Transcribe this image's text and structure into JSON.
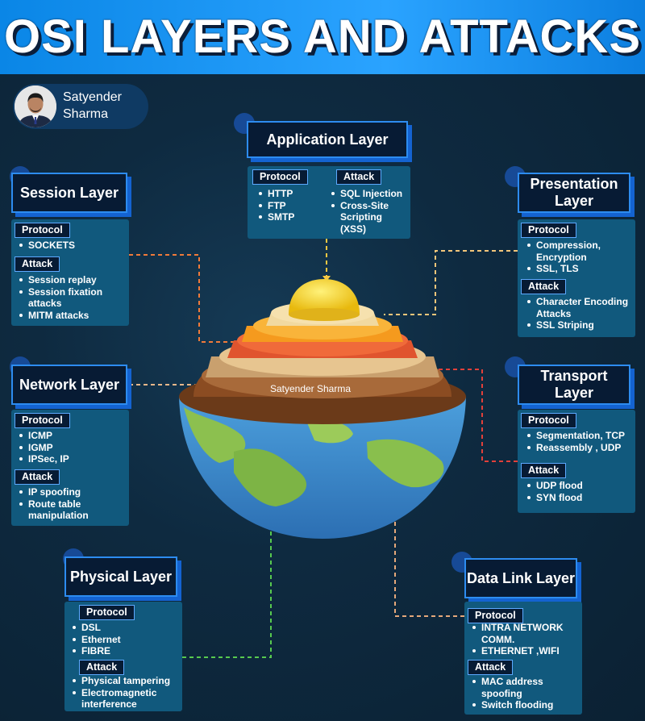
{
  "title": "OSI LAYERS AND ATTACKS",
  "author": {
    "name": "Satyender Sharma",
    "watermark": "Satyender Sharma"
  },
  "colors": {
    "banner": "#1a93f5",
    "background": "#0d2438",
    "panel": "#11597d",
    "title_box": "#071b34",
    "accent": "#1463d1"
  },
  "layers": {
    "application": {
      "title": "Application Layer",
      "protocol_label": "Protocol",
      "attack_label": "Attack",
      "protocols": [
        "HTTP",
        "FTP",
        "SMTP"
      ],
      "attacks": [
        "SQL Injection",
        "Cross-Site Scripting (XSS)"
      ]
    },
    "presentation": {
      "title": "Presentation Layer",
      "protocol_label": "Protocol",
      "attack_label": "Attack",
      "protocols": [
        "Compression, Encryption",
        "SSL, TLS"
      ],
      "attacks": [
        "Character Encoding Attacks",
        "SSL Striping"
      ]
    },
    "session": {
      "title": "Session Layer",
      "protocol_label": "Protocol",
      "attack_label": "Attack",
      "protocols": [
        "SOCKETS"
      ],
      "attacks": [
        "Session replay",
        "Session fixation attacks",
        "MITM attacks"
      ]
    },
    "transport": {
      "title": "Transport Layer",
      "protocol_label": "Protocol",
      "attack_label": "Attack",
      "protocols": [
        "Segmentation, TCP",
        "Reassembly , UDP"
      ],
      "attacks": [
        "UDP flood",
        "SYN flood"
      ]
    },
    "network": {
      "title": "Network Layer",
      "protocol_label": "Protocol",
      "attack_label": "Attack",
      "protocols": [
        "ICMP",
        "IGMP",
        "IPSec, IP"
      ],
      "attacks": [
        "IP spoofing",
        "Route table manipulation"
      ]
    },
    "data_link": {
      "title": "Data Link Layer",
      "protocol_label": "Protocol",
      "attack_label": "Attack",
      "protocols": [
        "INTRA NETWORK COMM.",
        "ETHERNET ,WIFI"
      ],
      "attacks": [
        "MAC address spoofing",
        "Switch flooding"
      ]
    },
    "physical": {
      "title": "Physical Layer",
      "protocol_label": "Protocol",
      "attack_label": "Attack",
      "protocols": [
        "DSL",
        "Ethernet",
        "FIBRE"
      ],
      "attacks": [
        "Physical tampering",
        "Electromagnetic interference"
      ]
    }
  }
}
